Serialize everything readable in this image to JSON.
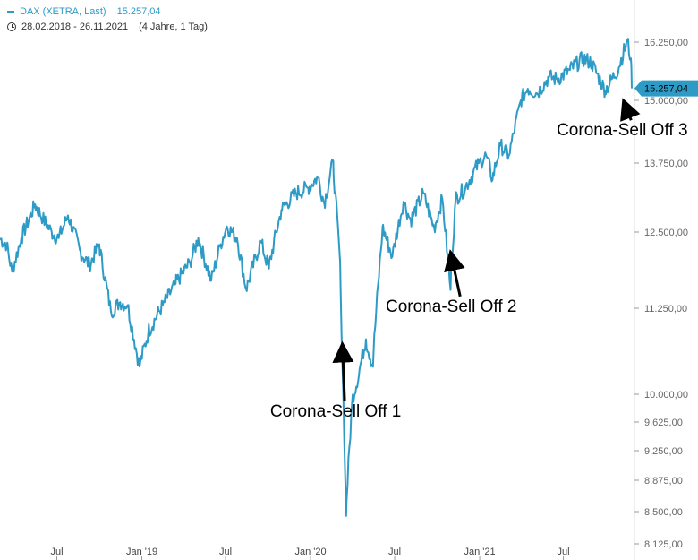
{
  "header": {
    "legend_label": "DAX (XETRA, Last)",
    "legend_value": "15.257,04",
    "date_range": "28.02.2018 - 26.11.2021",
    "duration": "(4 Jahre, 1 Tag)"
  },
  "colors": {
    "series": "#2e9bc6",
    "axis_text": "#666666",
    "annotation": "#000000"
  },
  "chart_data": {
    "type": "line",
    "title": "",
    "xlabel": "",
    "ylabel": "",
    "x_range": [
      "2018-02-28",
      "2021-11-26"
    ],
    "y_ticks": [
      8125,
      8500,
      8875,
      9250,
      9625,
      10000,
      11250,
      12500,
      13750,
      15000,
      16250
    ],
    "y_tick_labels": [
      "8.125,00",
      "8.500,00",
      "8.875,00",
      "9.250,00",
      "9.625,00",
      "10.000,00",
      "11.250,00",
      "12.500,00",
      "13.750,00",
      "15.000,00",
      "16.250,00"
    ],
    "x_ticks": [
      "2018-07-01",
      "2019-01-01",
      "2019-07-01",
      "2020-01-01",
      "2020-07-01",
      "2021-01-01",
      "2021-07-01"
    ],
    "x_tick_labels": [
      "Jul",
      "Jan '19",
      "Jul",
      "Jan '20",
      "Jul",
      "Jan '21",
      "Jul"
    ],
    "last_value_label": "15.257,04",
    "series": [
      {
        "name": "DAX (XETRA, Last)",
        "points": [
          [
            "2018-02-28",
            12400
          ],
          [
            "2018-03-15",
            12300
          ],
          [
            "2018-03-26",
            11850
          ],
          [
            "2018-04-15",
            12400
          ],
          [
            "2018-05-15",
            13000
          ],
          [
            "2018-06-01",
            12750
          ],
          [
            "2018-06-20",
            12500
          ],
          [
            "2018-07-05",
            12400
          ],
          [
            "2018-07-25",
            12800
          ],
          [
            "2018-08-20",
            12200
          ],
          [
            "2018-09-10",
            11950
          ],
          [
            "2018-10-01",
            12300
          ],
          [
            "2018-10-26",
            11200
          ],
          [
            "2018-11-15",
            11350
          ],
          [
            "2018-12-01",
            11300
          ],
          [
            "2018-12-27",
            10400
          ],
          [
            "2019-01-15",
            10900
          ],
          [
            "2019-02-15",
            11300
          ],
          [
            "2019-03-15",
            11650
          ],
          [
            "2019-04-15",
            12000
          ],
          [
            "2019-05-03",
            12400
          ],
          [
            "2019-05-31",
            11700
          ],
          [
            "2019-06-20",
            12300
          ],
          [
            "2019-07-04",
            12600
          ],
          [
            "2019-07-26",
            12400
          ],
          [
            "2019-08-15",
            11550
          ],
          [
            "2019-09-15",
            12350
          ],
          [
            "2019-10-03",
            11900
          ],
          [
            "2019-10-30",
            12900
          ],
          [
            "2019-11-30",
            13200
          ],
          [
            "2019-12-27",
            13300
          ],
          [
            "2020-01-17",
            13500
          ],
          [
            "2020-01-31",
            13000
          ],
          [
            "2020-02-19",
            13790
          ],
          [
            "2020-03-05",
            12000
          ],
          [
            "2020-03-16",
            8900
          ],
          [
            "2020-03-18",
            8450
          ],
          [
            "2020-03-31",
            9900
          ],
          [
            "2020-04-15",
            10300
          ],
          [
            "2020-04-30",
            10800
          ],
          [
            "2020-05-15",
            10400
          ],
          [
            "2020-06-05",
            12600
          ],
          [
            "2020-06-26",
            12100
          ],
          [
            "2020-07-20",
            13050
          ],
          [
            "2020-08-05",
            12700
          ],
          [
            "2020-09-01",
            13200
          ],
          [
            "2020-09-25",
            12550
          ],
          [
            "2020-10-12",
            13100
          ],
          [
            "2020-10-30",
            11550
          ],
          [
            "2020-11-10",
            13100
          ],
          [
            "2020-12-01",
            13300
          ],
          [
            "2020-12-30",
            13750
          ],
          [
            "2021-01-15",
            13900
          ],
          [
            "2021-01-29",
            13450
          ],
          [
            "2021-02-15",
            14100
          ],
          [
            "2021-03-05",
            13900
          ],
          [
            "2021-03-31",
            15000
          ],
          [
            "2021-04-15",
            15250
          ],
          [
            "2021-05-05",
            15150
          ],
          [
            "2021-05-31",
            15500
          ],
          [
            "2021-06-18",
            15450
          ],
          [
            "2021-07-15",
            15650
          ],
          [
            "2021-08-13",
            15900
          ],
          [
            "2021-09-01",
            15800
          ],
          [
            "2021-09-30",
            15200
          ],
          [
            "2021-10-29",
            15700
          ],
          [
            "2021-11-17",
            16290
          ],
          [
            "2021-11-24",
            15900
          ],
          [
            "2021-11-26",
            15257
          ]
        ]
      }
    ],
    "annotations": [
      {
        "text": "Corona-Sell Off 1",
        "x": "2020-03-05",
        "y": 9700,
        "target_x": "2020-03-10",
        "target_y": 10800
      },
      {
        "text": "Corona-Sell Off 2",
        "x": "2020-11-10",
        "y": 11200,
        "target_x": "2020-10-31",
        "target_y": 12250
      },
      {
        "text": "Corona-Sell Off 3",
        "x": "2021-11-15",
        "y": 14300,
        "target_x": "2021-11-10",
        "target_y": 15100
      }
    ]
  }
}
